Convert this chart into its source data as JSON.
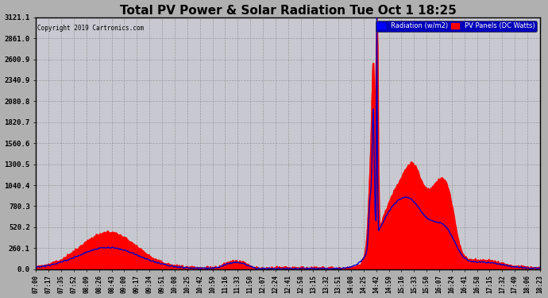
{
  "title": "Total PV Power & Solar Radiation Tue Oct 1 18:25",
  "copyright": "Copyright 2019 Cartronics.com",
  "legend_radiation": "Radiation (w/m2)",
  "legend_pv": "PV Panels (DC Watts)",
  "ylabel_ticks": [
    0.0,
    260.1,
    520.2,
    780.3,
    1040.4,
    1300.5,
    1560.6,
    1820.7,
    2080.8,
    2340.9,
    2600.9,
    2861.0,
    3121.1
  ],
  "ylim": [
    0,
    3121.1
  ],
  "fig_bg": "#b0b0b0",
  "plot_bg": "#c8c8d0",
  "radiation_color": "#0000cc",
  "pv_color": "#ff0000",
  "grid_color": "#888888",
  "title_fontsize": 12,
  "xtick_labels": [
    "07:00",
    "07:17",
    "07:35",
    "07:52",
    "08:09",
    "08:26",
    "08:43",
    "09:00",
    "09:17",
    "09:34",
    "09:51",
    "10:08",
    "10:25",
    "10:42",
    "10:59",
    "11:16",
    "11:33",
    "11:50",
    "12:07",
    "12:24",
    "12:41",
    "12:58",
    "13:15",
    "13:32",
    "13:51",
    "14:08",
    "14:25",
    "14:42",
    "14:59",
    "15:16",
    "15:33",
    "15:50",
    "16:07",
    "16:24",
    "16:41",
    "16:58",
    "17:15",
    "17:32",
    "17:49",
    "18:06",
    "18:23"
  ]
}
